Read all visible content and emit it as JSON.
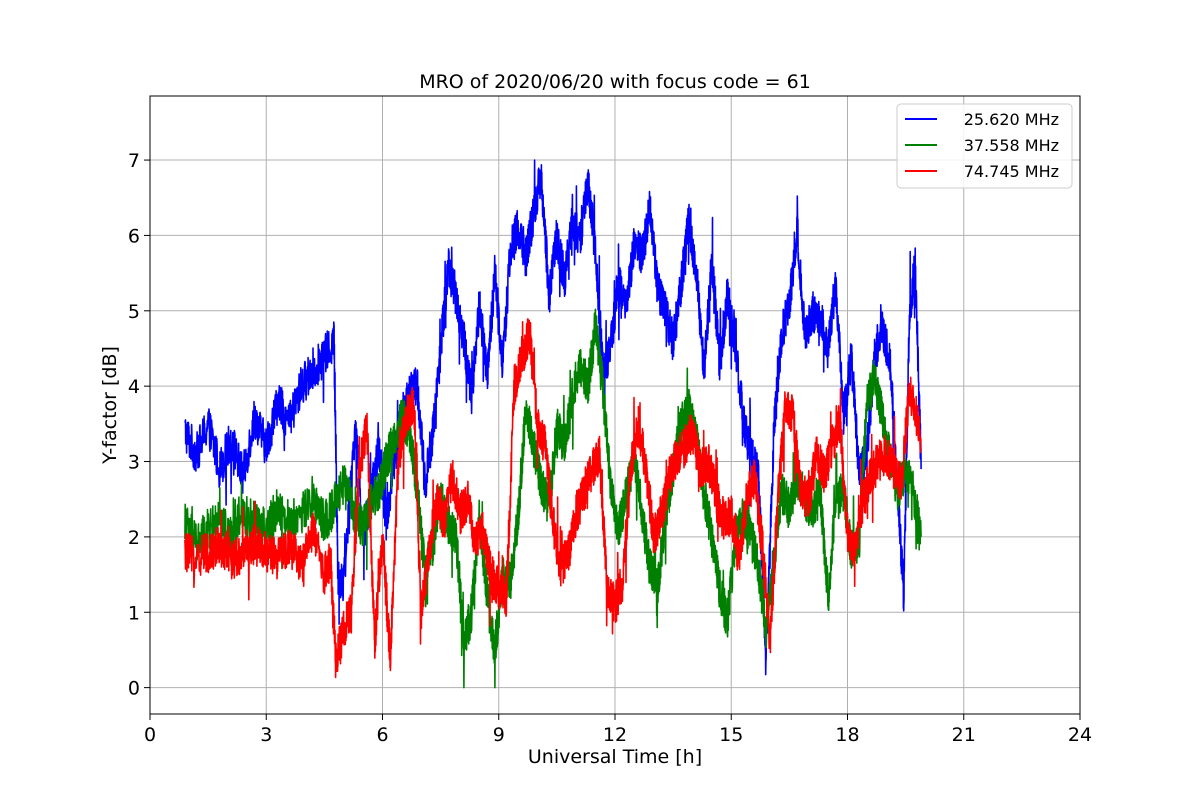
{
  "chart_data": {
    "type": "line",
    "title": "MRO of 2020/06/20 with focus code = 61",
    "xlabel": "Universal Time [h]",
    "ylabel": "Y-factor [dB]",
    "xlim": [
      0,
      24
    ],
    "ylim": [
      -0.35,
      7.85
    ],
    "xticks": [
      0,
      3,
      6,
      9,
      12,
      15,
      18,
      21,
      24
    ],
    "yticks": [
      0,
      1,
      2,
      3,
      4,
      5,
      6,
      7
    ],
    "grid": true,
    "legend_position": "top-right",
    "series": [
      {
        "name": "25.620 MHz",
        "color": "#0000ff",
        "x": [
          0.9,
          1.2,
          1.5,
          1.8,
          2.1,
          2.4,
          2.7,
          3.0,
          3.3,
          3.6,
          3.9,
          4.2,
          4.5,
          4.75,
          4.85,
          5.0,
          5.3,
          5.5,
          5.7,
          5.9,
          6.1,
          6.3,
          6.5,
          6.7,
          6.9,
          7.1,
          7.3,
          7.5,
          7.7,
          7.9,
          8.1,
          8.3,
          8.5,
          8.7,
          8.9,
          9.1,
          9.3,
          9.5,
          9.7,
          9.9,
          10.1,
          10.3,
          10.5,
          10.7,
          10.9,
          11.1,
          11.3,
          11.5,
          11.7,
          11.9,
          12.1,
          12.3,
          12.5,
          12.7,
          12.9,
          13.1,
          13.3,
          13.5,
          13.7,
          13.9,
          14.1,
          14.3,
          14.5,
          14.7,
          14.9,
          15.1,
          15.3,
          15.5,
          15.7,
          15.9,
          16.1,
          16.3,
          16.5,
          16.7,
          16.9,
          17.1,
          17.3,
          17.5,
          17.7,
          17.9,
          18.1,
          18.3,
          18.5,
          18.7,
          18.9,
          19.1,
          19.3,
          19.45,
          19.6,
          19.75,
          19.9
        ],
        "values": [
          3.4,
          3.1,
          3.5,
          2.9,
          3.3,
          2.8,
          3.6,
          3.2,
          3.8,
          3.5,
          4.0,
          4.2,
          4.4,
          4.6,
          1.5,
          1.4,
          3.5,
          2.0,
          2.5,
          3.2,
          2.2,
          3.0,
          3.6,
          3.9,
          4.0,
          2.7,
          3.4,
          4.5,
          5.6,
          5.2,
          4.6,
          3.9,
          5.1,
          4.1,
          5.5,
          4.3,
          5.8,
          6.1,
          5.7,
          6.3,
          6.8,
          5.2,
          6.0,
          5.4,
          6.2,
          5.9,
          6.7,
          5.8,
          4.1,
          4.6,
          5.4,
          5.1,
          5.9,
          5.7,
          6.4,
          5.3,
          5.0,
          4.6,
          5.3,
          6.2,
          5.5,
          4.2,
          5.7,
          4.3,
          5.2,
          4.6,
          3.6,
          3.1,
          2.8,
          0.3,
          3.4,
          4.7,
          5.1,
          6.1,
          4.7,
          5.0,
          4.9,
          4.5,
          5.4,
          3.6,
          4.4,
          2.8,
          3.1,
          4.4,
          4.8,
          4.3,
          2.6,
          1.2,
          5.0,
          5.6,
          2.9
        ]
      },
      {
        "name": "37.558 MHz",
        "color": "#008000",
        "x": [
          0.9,
          1.2,
          1.5,
          1.8,
          2.1,
          2.4,
          2.7,
          3.0,
          3.3,
          3.6,
          3.9,
          4.2,
          4.5,
          4.75,
          5.0,
          5.3,
          5.5,
          5.7,
          5.9,
          6.1,
          6.3,
          6.5,
          6.7,
          6.9,
          7.1,
          7.3,
          7.5,
          7.7,
          7.9,
          8.1,
          8.3,
          8.5,
          8.7,
          8.9,
          9.1,
          9.3,
          9.5,
          9.7,
          9.9,
          10.1,
          10.3,
          10.5,
          10.7,
          10.9,
          11.1,
          11.3,
          11.5,
          11.7,
          11.9,
          12.1,
          12.3,
          12.5,
          12.7,
          12.9,
          13.1,
          13.3,
          13.5,
          13.7,
          13.9,
          14.1,
          14.3,
          14.5,
          14.7,
          14.9,
          15.1,
          15.3,
          15.5,
          15.7,
          15.9,
          16.1,
          16.3,
          16.5,
          16.7,
          16.9,
          17.1,
          17.3,
          17.5,
          17.7,
          17.9,
          18.1,
          18.3,
          18.5,
          18.7,
          18.9,
          19.1,
          19.3,
          19.5,
          19.7,
          19.9
        ],
        "values": [
          2.2,
          1.9,
          2.1,
          2.2,
          2.0,
          2.3,
          2.2,
          2.1,
          2.4,
          2.2,
          2.3,
          2.5,
          2.2,
          2.4,
          2.7,
          2.3,
          2.1,
          2.5,
          2.6,
          3.0,
          3.3,
          3.6,
          3.4,
          2.6,
          1.5,
          1.9,
          2.5,
          2.2,
          2.0,
          0.6,
          1.0,
          2.3,
          1.2,
          0.5,
          1.5,
          1.4,
          2.3,
          3.7,
          3.2,
          2.7,
          2.4,
          3.5,
          3.2,
          3.9,
          4.3,
          4.0,
          4.8,
          3.9,
          2.6,
          2.1,
          2.6,
          3.1,
          2.3,
          1.6,
          1.3,
          2.3,
          2.9,
          3.5,
          3.7,
          3.3,
          2.6,
          2.0,
          1.3,
          0.9,
          1.9,
          2.3,
          2.0,
          1.6,
          0.8,
          1.7,
          2.6,
          2.4,
          2.8,
          2.5,
          2.3,
          2.6,
          1.2,
          2.5,
          2.6,
          1.8,
          1.9,
          3.8,
          4.1,
          3.6,
          3.0,
          2.6,
          2.9,
          2.6,
          2.0
        ]
      },
      {
        "name": "74.745 MHz",
        "color": "#ff0000",
        "x": [
          0.9,
          1.2,
          1.5,
          1.8,
          2.1,
          2.4,
          2.7,
          3.0,
          3.3,
          3.6,
          3.9,
          4.2,
          4.5,
          4.65,
          4.8,
          5.0,
          5.2,
          5.4,
          5.6,
          5.8,
          6.0,
          6.2,
          6.4,
          6.6,
          6.8,
          7.0,
          7.2,
          7.4,
          7.6,
          7.8,
          8.0,
          8.2,
          8.4,
          8.6,
          8.8,
          9.0,
          9.2,
          9.4,
          9.6,
          9.8,
          10.0,
          10.2,
          10.4,
          10.6,
          10.8,
          11.0,
          11.2,
          11.4,
          11.6,
          11.8,
          12.0,
          12.2,
          12.4,
          12.6,
          12.8,
          13.0,
          13.2,
          13.4,
          13.6,
          13.8,
          14.0,
          14.2,
          14.4,
          14.6,
          14.8,
          15.0,
          15.2,
          15.4,
          15.6,
          15.8,
          16.0,
          16.2,
          16.4,
          16.6,
          16.8,
          17.0,
          17.2,
          17.4,
          17.6,
          17.8,
          18.0,
          18.2,
          18.4,
          18.6,
          18.8,
          19.0,
          19.2,
          19.4,
          19.6,
          19.9
        ],
        "values": [
          1.8,
          1.7,
          1.8,
          1.9,
          1.7,
          1.8,
          1.9,
          1.8,
          1.7,
          1.9,
          1.6,
          2.1,
          1.5,
          1.7,
          0.3,
          0.8,
          1.0,
          2.9,
          3.5,
          0.6,
          2.0,
          0.4,
          2.9,
          3.6,
          3.8,
          1.0,
          1.8,
          2.5,
          2.2,
          2.8,
          2.3,
          2.5,
          1.9,
          2.1,
          1.5,
          1.3,
          1.2,
          4.0,
          4.4,
          4.7,
          3.5,
          3.2,
          2.2,
          1.6,
          1.8,
          2.3,
          2.6,
          2.9,
          3.1,
          1.3,
          1.1,
          1.4,
          2.9,
          3.5,
          2.9,
          2.0,
          2.3,
          2.8,
          3.1,
          3.2,
          3.4,
          2.9,
          3.0,
          2.6,
          2.2,
          2.3,
          1.7,
          2.5,
          2.8,
          1.9,
          0.6,
          2.5,
          3.7,
          3.6,
          2.6,
          2.5,
          3.1,
          2.8,
          3.2,
          3.5,
          2.0,
          1.8,
          2.5,
          2.8,
          3.0,
          3.1,
          2.9,
          2.7,
          4.0,
          3.3
        ]
      }
    ]
  }
}
